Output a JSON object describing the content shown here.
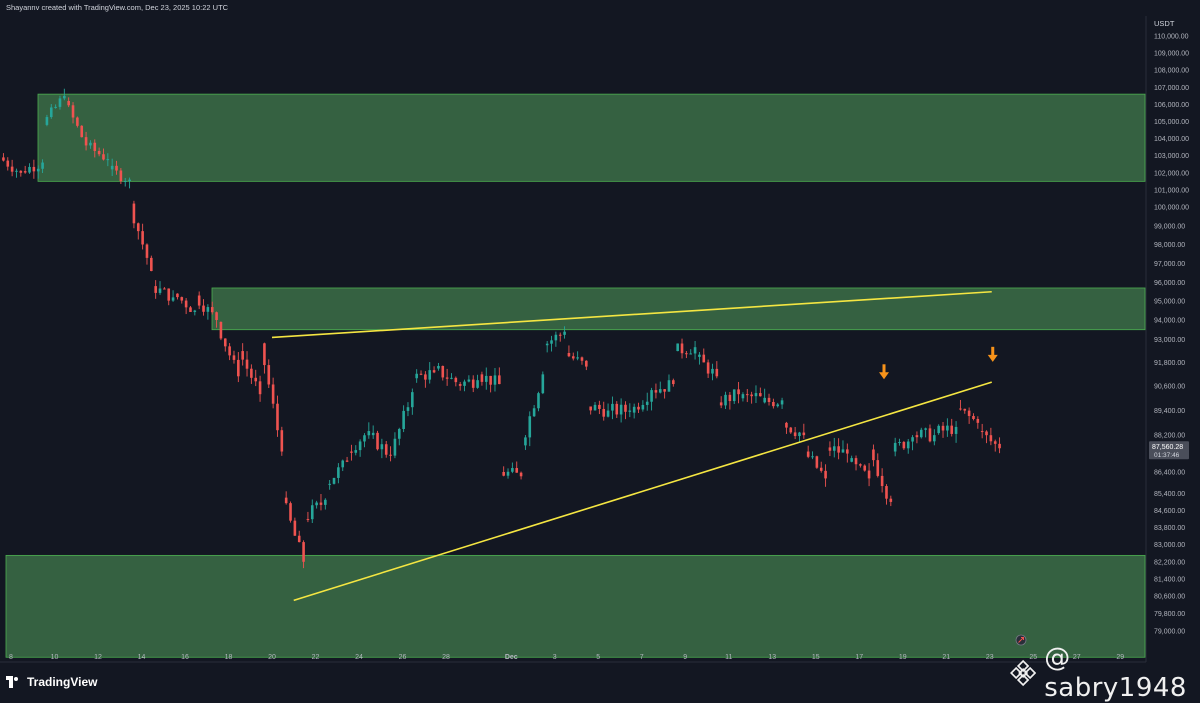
{
  "header": {
    "attribution": "Shayannv created with TradingView.com, Dec 23, 2025 10:22 UTC"
  },
  "branding": {
    "logo_text": "TradingView",
    "watermark": "@ sabry1948"
  },
  "colors": {
    "background": "#131722",
    "up_candle": "#26a69a",
    "down_candle": "#ef5350",
    "zone_fill": "#3c6e47",
    "zone_border": "#4caf50",
    "trendline": "#f5e642",
    "arrow": "#f7931a",
    "price_tag": "#4a4e5a"
  },
  "chart_data": {
    "type": "candlestick",
    "title": "",
    "currency": "USDT",
    "ylim": [
      78000,
      111500
    ],
    "y_ticks": [
      "110,000.00",
      "109,000.00",
      "108,000.00",
      "107,000.00",
      "106,000.00",
      "105,000.00",
      "104,000.00",
      "103,000.00",
      "102,000.00",
      "101,000.00",
      "100,000.00",
      "99,000.00",
      "98,000.00",
      "97,000.00",
      "96,000.00",
      "95,000.00",
      "94,000.00",
      "93,000.00",
      "91,800.00",
      "90,600.00",
      "89,400.00",
      "88,200.00",
      "86,400.00",
      "85,400.00",
      "84,600.00",
      "83,800.00",
      "83,000.00",
      "82,200.00",
      "81,400.00",
      "80,600.00",
      "79,800.00",
      "79,000.00"
    ],
    "x_ticks": [
      "8",
      "10",
      "12",
      "14",
      "16",
      "18",
      "20",
      "22",
      "24",
      "26",
      "28",
      "Dec",
      "3",
      "5",
      "7",
      "9",
      "11",
      "13",
      "15",
      "17",
      "19",
      "21",
      "23",
      "25",
      "27",
      "29"
    ],
    "current_price": "87,560.28",
    "countdown": "01:37:46",
    "zones": [
      {
        "name": "upper-supply-zone",
        "from": 101500,
        "to": 106600
      },
      {
        "name": "mid-resistance-zone",
        "from": 93500,
        "to": 95700
      },
      {
        "name": "lower-demand-zone",
        "from": 77800,
        "to": 82500
      }
    ],
    "trendlines": [
      {
        "name": "upper-trendline",
        "x0": "Nov 20",
        "y0": 93100,
        "x1": "Dec 23",
        "y1": 95500
      },
      {
        "name": "lower-trendline",
        "x0": "Nov 21",
        "y0": 80400,
        "x1": "Dec 23",
        "y1": 90800
      }
    ],
    "arrows": [
      {
        "name": "arrow-1",
        "x": "Dec 18",
        "y": 91100
      },
      {
        "name": "arrow-2",
        "x": "Dec 23",
        "y": 92000
      }
    ],
    "ohlc_anchors": [
      [
        "Nov 8",
        102900,
        102000
      ],
      [
        "Nov 9",
        102100,
        102600
      ],
      [
        "Nov 10",
        104800,
        106500
      ],
      [
        "Nov 11",
        106200,
        103600
      ],
      [
        "Nov 12",
        103600,
        102800
      ],
      [
        "Nov 13",
        102200,
        101600
      ],
      [
        "Nov 14",
        100200,
        96600
      ],
      [
        "Nov 15",
        95800,
        95200
      ],
      [
        "Nov 16",
        95400,
        94500
      ],
      [
        "Nov 17",
        95300,
        94000
      ],
      [
        "Nov 18",
        93900,
        91100
      ],
      [
        "Nov 19",
        92400,
        90200
      ],
      [
        "Nov 20",
        92800,
        87400
      ],
      [
        "Nov 21",
        85200,
        82200
      ],
      [
        "Nov 22",
        84200,
        85100
      ],
      [
        "Nov 23",
        85800,
        86900
      ],
      [
        "Nov 24",
        87400,
        88400
      ],
      [
        "Nov 25",
        88200,
        87200
      ],
      [
        "Nov 26",
        87200,
        90300
      ],
      [
        "Nov 27",
        91000,
        91300
      ],
      [
        "Nov 28",
        91500,
        90800
      ],
      [
        "Nov 29",
        90700,
        90900
      ],
      [
        "Nov 30",
        91200,
        90700
      ],
      [
        "Dec 1",
        86400,
        86200
      ],
      [
        "Dec 2",
        87700,
        91200
      ],
      [
        "Dec 3",
        92700,
        93400
      ],
      [
        "Dec 4",
        92300,
        91600
      ],
      [
        "Dec 5",
        89600,
        89400
      ],
      [
        "Dec 6",
        89400,
        89400
      ],
      [
        "Dec 7",
        89300,
        90400
      ],
      [
        "Dec 8",
        90400,
        90700
      ],
      [
        "Dec 9",
        92400,
        92600
      ],
      [
        "Dec 10",
        92100,
        91100
      ],
      [
        "Dec 11",
        89800,
        90200
      ],
      [
        "Dec 12",
        90000,
        90100
      ],
      [
        "Dec 13",
        89800,
        89900
      ],
      [
        "Dec 14",
        88800,
        88200
      ],
      [
        "Dec 15",
        87400,
        86100
      ],
      [
        "Dec 16",
        87600,
        87300
      ],
      [
        "Dec 17",
        86900,
        86100
      ],
      [
        "Dec 18",
        87500,
        85000
      ],
      [
        "Dec 19",
        87400,
        88100
      ],
      [
        "Dec 20",
        88200,
        88200
      ],
      [
        "Dec 21",
        88300,
        88600
      ],
      [
        "Dec 22",
        89500,
        88800
      ],
      [
        "Dec 23",
        88400,
        87560
      ]
    ]
  }
}
